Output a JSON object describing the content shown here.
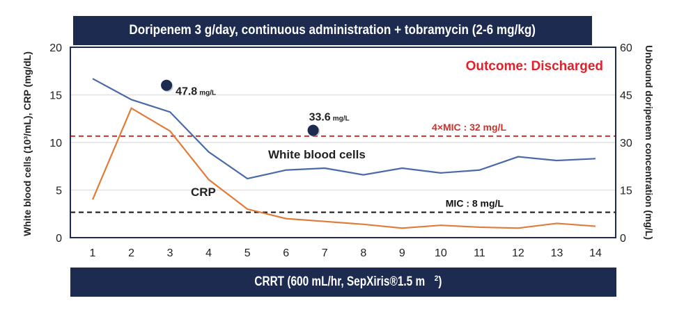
{
  "top_banner": "Doripenem 3 g/day, continuous administration + tobramycin (2-6 mg/kg)",
  "bottom_banner": {
    "text": "CRRT (600 mL/hr, SepXiris®1.5 m",
    "superscript": "2",
    "suffix": ")"
  },
  "chart_data": {
    "type": "line",
    "title": "Doripenem 3 g/day, continuous administration + tobramycin (2-6 mg/kg)",
    "xlabel": "",
    "ylabel_left": "White blood cells (10³/mL), CRP (mg/dL)",
    "ylabel_right": "Unbound doripenem concentration (mg/L)",
    "x": [
      1,
      2,
      3,
      4,
      5,
      6,
      7,
      8,
      9,
      10,
      11,
      12,
      13,
      14
    ],
    "x_tick_labels": [
      "1",
      "2",
      "3",
      "4",
      "5",
      "6",
      "7",
      "8",
      "9",
      "10",
      "11",
      "12",
      "13",
      "14"
    ],
    "ylim_left": [
      0,
      20
    ],
    "yticks_left": [
      "0",
      "5",
      "10",
      "15",
      "20"
    ],
    "ylim_right": [
      0,
      60
    ],
    "yticks_right": [
      "0",
      "15",
      "30",
      "45",
      "60"
    ],
    "grid": true,
    "series": [
      {
        "name": "White blood cells",
        "axis": "left",
        "color": "#4a69a8",
        "values": [
          16.7,
          14.5,
          13.2,
          9.0,
          6.2,
          7.1,
          7.3,
          6.6,
          7.3,
          6.8,
          7.1,
          8.5,
          8.1,
          8.3
        ]
      },
      {
        "name": "CRP",
        "axis": "left",
        "color": "#e07b39",
        "values": [
          4.0,
          13.6,
          11.2,
          6.1,
          3.0,
          2.0,
          1.7,
          1.4,
          1.0,
          1.3,
          1.1,
          1.0,
          1.5,
          1.2
        ]
      }
    ],
    "points": [
      {
        "name": "Unbound doripenem",
        "axis": "right",
        "color": "#1c2b4f",
        "x": 3.0,
        "y": 47.8,
        "label": "47.8",
        "unit": "mg/L"
      },
      {
        "name": "Unbound doripenem",
        "axis": "right",
        "color": "#1c2b4f",
        "x": 6.7,
        "y": 33.6,
        "label": "33.6",
        "unit": "mg/L"
      }
    ],
    "reference_lines": [
      {
        "label": "4×MIC : 32 mg/L",
        "axis": "right",
        "value": 32,
        "color": "#d0302a",
        "style": "dashed"
      },
      {
        "label": "MIC : 8 mg/L",
        "axis": "right",
        "value": 8,
        "color": "#111111",
        "style": "dashed"
      }
    ],
    "annotations": [
      {
        "text": "Outcome: Discharged",
        "color": "#e3202a"
      },
      {
        "text": "White blood cells",
        "color": "#222222"
      },
      {
        "text": "CRP",
        "color": "#222222"
      }
    ]
  }
}
